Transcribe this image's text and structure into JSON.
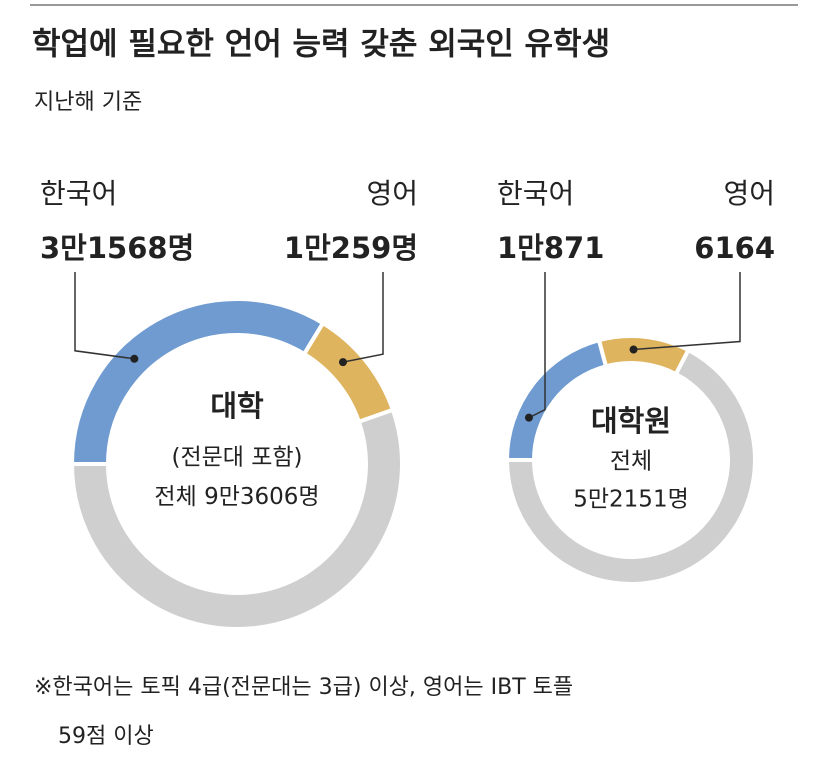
{
  "header": {
    "title": "학업에 필요한 언어 능력 갖춘 외국인 유학생",
    "subtitle": "지난해 기준"
  },
  "chart_data": [
    {
      "type": "donut",
      "title": "대학",
      "subtitle": "(전문대 포함)",
      "categories": [
        "한국어",
        "영어"
      ],
      "values": [
        31568,
        10259
      ],
      "value_labels": [
        "3만1568명",
        "1만259명"
      ],
      "colors": [
        "#6f9bd1",
        "#dfb45f"
      ],
      "total": 93606,
      "total_caption": "전체",
      "total_value_label": "9만3606명",
      "rest_color": "#cfcfcf"
    },
    {
      "type": "donut",
      "title": "대학원",
      "categories": [
        "한국어",
        "영어"
      ],
      "values": [
        10871,
        6164
      ],
      "value_labels": [
        "1만871",
        "6164"
      ],
      "colors": [
        "#6f9bd1",
        "#dfb45f"
      ],
      "total": 52151,
      "total_caption": "전체",
      "total_value_label": "5만2151명",
      "rest_color": "#cfcfcf"
    }
  ],
  "footnote": [
    "※한국어는 토픽 4급(전문대는 3급) 이상, 영어는 IBT 토플",
    "59점 이상"
  ]
}
